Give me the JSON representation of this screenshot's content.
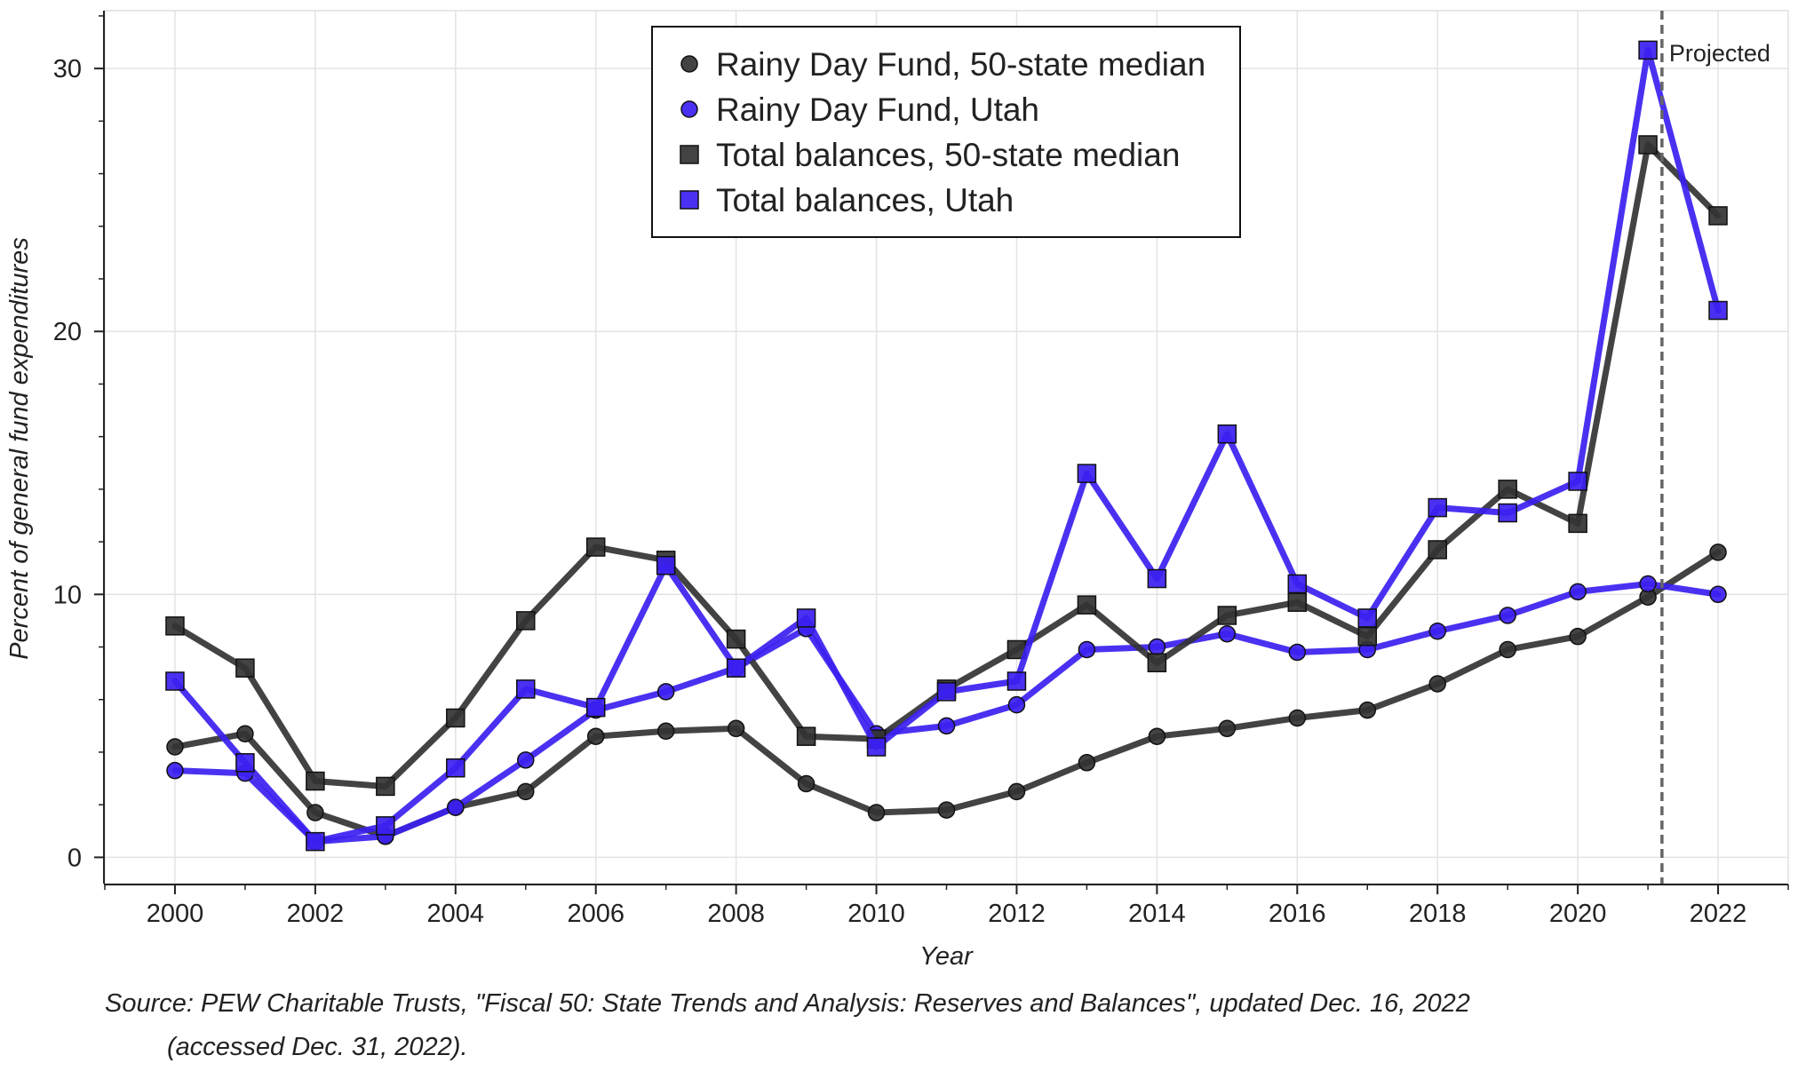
{
  "chart_data": {
    "type": "line",
    "title": "",
    "xlabel": "Year",
    "ylabel": "Percent of general fund expenditures",
    "xlim": [
      1999,
      2023
    ],
    "ylim": [
      -1,
      32.2
    ],
    "x": [
      2000,
      2001,
      2002,
      2003,
      2004,
      2005,
      2006,
      2007,
      2008,
      2009,
      2010,
      2011,
      2012,
      2013,
      2014,
      2015,
      2016,
      2017,
      2018,
      2019,
      2020,
      2021,
      2022
    ],
    "x_ticks": [
      2000,
      2002,
      2004,
      2006,
      2008,
      2010,
      2012,
      2014,
      2016,
      2018,
      2020,
      2022
    ],
    "y_ticks": [
      0,
      10,
      20,
      30
    ],
    "grid": true,
    "legend_position": "top-center",
    "series": [
      {
        "name": "Rainy Day Fund, 50-state median",
        "marker": "circle",
        "color": "#333333",
        "values": [
          4.2,
          4.7,
          1.7,
          0.8,
          1.9,
          2.5,
          4.6,
          4.8,
          4.9,
          2.8,
          1.7,
          1.8,
          2.5,
          3.6,
          4.6,
          4.9,
          5.3,
          5.6,
          6.6,
          7.9,
          8.4,
          9.9,
          11.6
        ]
      },
      {
        "name": "Rainy Day Fund, Utah",
        "marker": "circle",
        "color": "#3b1ff0",
        "values": [
          3.3,
          3.2,
          0.6,
          0.8,
          1.9,
          3.7,
          5.6,
          6.3,
          7.2,
          8.7,
          4.7,
          5.0,
          5.8,
          7.9,
          8.0,
          8.5,
          7.8,
          7.9,
          8.6,
          9.2,
          10.1,
          10.4,
          10.0
        ]
      },
      {
        "name": "Total balances, 50-state median",
        "marker": "square",
        "color": "#333333",
        "values": [
          8.8,
          7.2,
          2.9,
          2.7,
          5.3,
          9.0,
          11.8,
          11.3,
          8.3,
          4.6,
          4.5,
          6.4,
          7.9,
          9.6,
          7.4,
          9.2,
          9.7,
          8.4,
          11.7,
          14.0,
          12.7,
          27.1,
          24.4
        ]
      },
      {
        "name": "Total balances, Utah",
        "marker": "square",
        "color": "#3b1ff0",
        "values": [
          6.7,
          3.6,
          0.6,
          1.2,
          3.4,
          6.4,
          5.7,
          11.1,
          7.2,
          9.1,
          4.2,
          6.3,
          6.7,
          14.6,
          10.6,
          16.1,
          10.4,
          9.1,
          13.3,
          13.1,
          14.3,
          30.7,
          20.8
        ]
      }
    ],
    "projection": {
      "x": 2021.2,
      "label": "Projected",
      "color": "#666666"
    }
  },
  "source_note": {
    "line1": "Source: PEW Charitable Trusts, \"Fiscal 50: State Trends and Analysis: Reserves and Balances\", updated Dec. 16, 2022",
    "line2": "(accessed Dec. 31, 2022)."
  }
}
